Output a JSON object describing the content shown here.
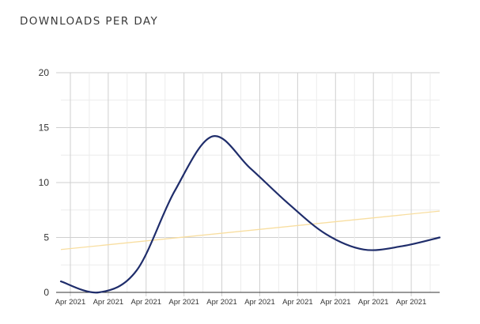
{
  "header": {
    "title": "DOWNLOADS PER DAY"
  },
  "colors": {
    "series": "#1f2d6b",
    "trend": "#f8dea0",
    "grid_major": "#cfcfcf",
    "grid_minor": "#ececec",
    "axis": "#333333"
  },
  "chart_data": {
    "type": "line",
    "title": "DOWNLOADS PER DAY",
    "xlabel": "",
    "ylabel": "",
    "ylim": [
      0,
      20
    ],
    "yticks": [
      0,
      5,
      10,
      15,
      20
    ],
    "x_tick_labels": [
      "Apr 2021",
      "Apr 2021",
      "Apr 2021",
      "Apr 2021",
      "Apr 2021",
      "Apr 2021",
      "Apr 2021",
      "Apr 2021",
      "Apr 2021",
      "Apr 2021"
    ],
    "grid": true,
    "legend": "none",
    "series": [
      {
        "style": "smooth",
        "values": [
          1.0,
          0.0,
          2.0,
          9.2,
          14.2,
          11.3,
          8.1,
          5.3,
          3.9,
          4.2,
          5.0
        ]
      },
      {
        "style": "trend",
        "values": [
          3.9,
          7.4
        ]
      }
    ]
  }
}
